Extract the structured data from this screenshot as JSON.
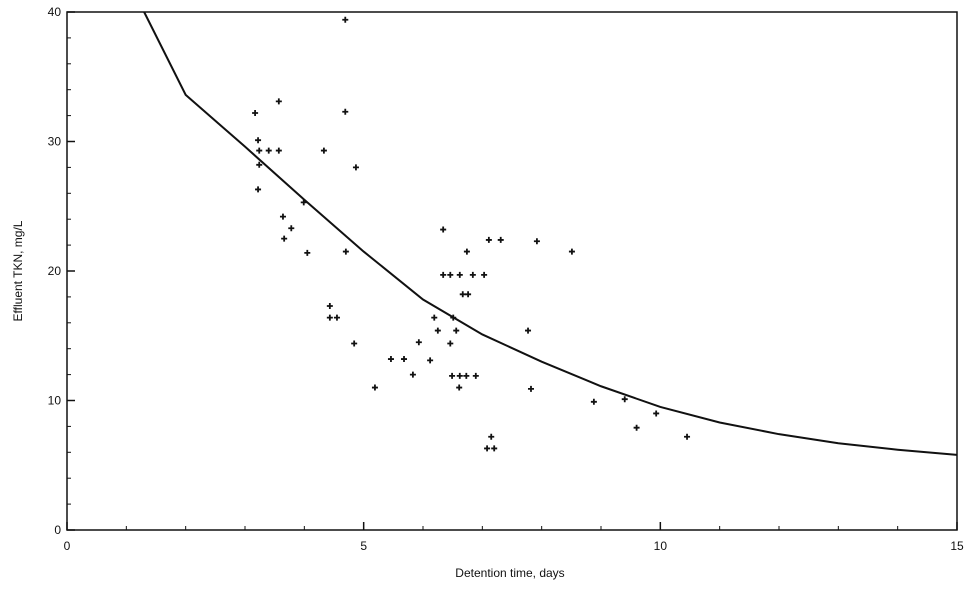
{
  "chart_data": {
    "type": "scatter",
    "x_label": "Detention time, days",
    "y_label": "Effluent TKN, mg/L",
    "xlim": [
      0,
      15
    ],
    "ylim": [
      0,
      40
    ],
    "xticks": [
      0,
      5,
      10,
      15
    ],
    "yticks": [
      0,
      10,
      20,
      30,
      40
    ],
    "x_minor_ticks": [
      1,
      2,
      3,
      4,
      6,
      7,
      8,
      9,
      11,
      12,
      13,
      14
    ],
    "y_minor_ticks": [
      2,
      4,
      6,
      8,
      12,
      14,
      16,
      18,
      22,
      24,
      26,
      28,
      32,
      34,
      36,
      38
    ],
    "grid": false,
    "series": [
      {
        "style": "marker",
        "color": "#111111",
        "x": [
          3.17,
          3.57,
          3.22,
          3.24,
          3.4,
          3.57,
          3.24,
          3.22,
          3.64,
          3.78,
          3.99,
          3.66,
          4.05,
          4.33,
          4.69,
          4.69,
          4.87,
          4.43,
          4.43,
          4.55,
          4.84,
          4.7,
          5.19,
          5.46,
          5.68,
          5.83,
          5.93,
          6.12,
          6.19,
          6.25,
          6.34,
          6.34,
          6.46,
          6.46,
          6.51,
          6.56,
          6.49,
          6.62,
          6.61,
          6.73,
          6.89,
          6.62,
          6.67,
          6.76,
          6.74,
          6.84,
          7.03,
          7.11,
          7.31,
          7.15,
          7.08,
          7.2,
          7.77,
          7.82,
          7.92,
          8.51,
          8.88,
          9.4,
          9.6,
          9.93,
          10.45
        ],
        "values": [
          32.2,
          33.1,
          30.1,
          29.3,
          29.3,
          29.3,
          28.2,
          26.3,
          24.2,
          23.3,
          25.3,
          22.5,
          21.4,
          29.3,
          32.3,
          39.4,
          28.0,
          17.3,
          16.4,
          16.4,
          14.4,
          21.5,
          11.0,
          13.2,
          13.2,
          12.0,
          14.5,
          13.1,
          16.4,
          15.4,
          23.2,
          19.7,
          19.7,
          14.4,
          16.4,
          15.4,
          11.9,
          11.9,
          11.0,
          11.9,
          11.9,
          19.7,
          18.2,
          18.2,
          21.5,
          19.7,
          19.7,
          22.4,
          22.4,
          7.2,
          6.3,
          6.3,
          15.4,
          10.9,
          22.3,
          21.5,
          9.9,
          10.1,
          7.9,
          9.0,
          7.2
        ]
      },
      {
        "style": "line",
        "color": "#111111",
        "x": [
          1.3,
          2,
          3,
          4,
          5,
          6,
          7,
          8,
          9,
          10,
          11,
          12,
          13,
          14,
          15
        ],
        "values": [
          40,
          33.6,
          29.6,
          25.5,
          21.5,
          17.8,
          15.1,
          13.0,
          11.1,
          9.5,
          8.3,
          7.4,
          6.7,
          6.2,
          5.8
        ]
      }
    ]
  }
}
